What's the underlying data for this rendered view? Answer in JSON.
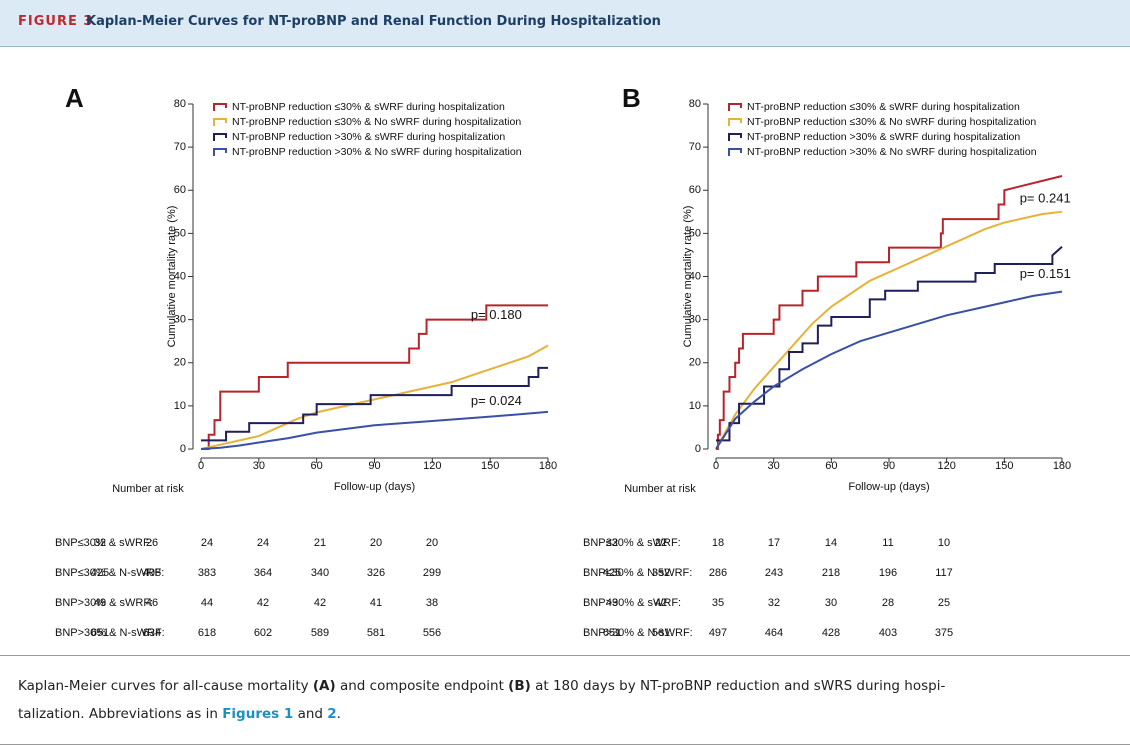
{
  "header": {
    "label": "FIGURE 3",
    "title": "Kaplan-Meier Curves for NT-proBNP and Renal Function During Hospitalization"
  },
  "chart_data": [
    {
      "type": "line",
      "step": true,
      "panel": "A",
      "x_label": "Follow-up (days)",
      "y_label": "Cumulative mortality rate (%)",
      "xlim": [
        0,
        180
      ],
      "xticks": [
        0,
        30,
        60,
        90,
        120,
        150,
        180
      ],
      "ylim": [
        0,
        80
      ],
      "yticks": [
        0,
        10,
        20,
        30,
        40,
        50,
        60,
        70,
        80
      ],
      "legend": "top-left",
      "series": [
        {
          "name": "NT-proBNP reduction ≤30% & sWRF during hospitalization",
          "color": "#b8242b",
          "x": [
            0,
            4,
            4,
            7,
            7,
            10,
            10,
            30,
            30,
            45,
            45,
            108,
            108,
            113,
            113,
            117,
            117,
            148,
            148,
            180
          ],
          "values": [
            0,
            0,
            3.3,
            3.3,
            6.7,
            6.7,
            13.3,
            13.3,
            16.7,
            16.7,
            20,
            20,
            23.3,
            23.3,
            26.7,
            26.7,
            30,
            30,
            33.3,
            33.3
          ]
        },
        {
          "name": "NT-proBNP reduction ≤30% & No sWRF during hospitalization",
          "color": "#e5b23a",
          "x": [
            0,
            10,
            20,
            30,
            40,
            50,
            60,
            70,
            80,
            90,
            100,
            110,
            120,
            130,
            140,
            150,
            160,
            170,
            180
          ],
          "values": [
            0,
            1,
            2,
            3,
            5,
            7,
            8.5,
            9.5,
            10.5,
            11.5,
            12.5,
            13.5,
            14.5,
            15.5,
            17,
            18.5,
            20,
            21.5,
            24
          ]
        },
        {
          "name": "NT-proBNP reduction >30% & sWRF during hospitalization",
          "color": "#1f1f5c",
          "x": [
            0,
            13,
            13,
            25,
            25,
            53,
            53,
            60,
            60,
            88,
            88,
            130,
            130,
            170,
            170,
            175,
            175,
            180
          ],
          "values": [
            2,
            2,
            4,
            4,
            6,
            6,
            8,
            8,
            10.4,
            10.4,
            12.5,
            12.5,
            14.6,
            14.6,
            16.7,
            16.7,
            18.8,
            18.8
          ]
        },
        {
          "name": "NT-proBNP reduction >30% & No sWRF during hospitalization",
          "color": "#3a4fa6",
          "x": [
            0,
            10,
            20,
            30,
            45,
            60,
            90,
            120,
            150,
            180
          ],
          "values": [
            0,
            0.3,
            0.8,
            1.5,
            2.5,
            3.8,
            5.5,
            6.5,
            7.5,
            8.6
          ]
        }
      ],
      "annotations": [
        {
          "text": "p= 0.180",
          "x": 140,
          "y": 31
        },
        {
          "text": "p= 0.024",
          "x": 140,
          "y": 11
        }
      ],
      "risk_table": {
        "title": "Number at risk",
        "rows": [
          {
            "label": "BNP≤30% & sWRF:",
            "values": [
              32,
              26,
              24,
              24,
              21,
              20,
              20
            ]
          },
          {
            "label": "BNP≤30% & N-sWRF:",
            "values": [
              425,
              408,
              383,
              364,
              340,
              326,
              299
            ]
          },
          {
            "label": "BNP>30% & sWRF:",
            "values": [
              49,
              46,
              44,
              42,
              42,
              41,
              38
            ]
          },
          {
            "label": "BNP>30% & N-sWRF:",
            "values": [
              651,
              634,
              618,
              602,
              589,
              581,
              556
            ]
          }
        ]
      }
    },
    {
      "type": "line",
      "step": true,
      "panel": "B",
      "x_label": "Follow-up (days)",
      "y_label": "Cumulative mortality rate (%)",
      "xlim": [
        0,
        180
      ],
      "xticks": [
        0,
        30,
        60,
        90,
        120,
        150,
        180
      ],
      "ylim": [
        0,
        80
      ],
      "yticks": [
        0,
        10,
        20,
        30,
        40,
        50,
        60,
        70,
        80
      ],
      "legend": "top-left",
      "series": [
        {
          "name": "NT-proBNP reduction ≤30% & sWRF during hospitalization",
          "color": "#b8242b",
          "x": [
            0,
            1,
            1,
            2,
            2,
            4,
            4,
            7,
            7,
            10,
            10,
            12,
            12,
            14,
            14,
            30,
            30,
            33,
            33,
            45,
            45,
            53,
            53,
            73,
            73,
            90,
            90,
            117,
            117,
            118,
            118,
            147,
            147,
            150,
            150,
            180
          ],
          "values": [
            0,
            0,
            3.3,
            3.3,
            6.7,
            6.7,
            13.3,
            13.3,
            16.7,
            16.7,
            20,
            20,
            23.3,
            23.3,
            26.7,
            26.7,
            30,
            30,
            33.3,
            33.3,
            36.7,
            36.7,
            40,
            40,
            43.3,
            43.3,
            46.7,
            46.7,
            50,
            50,
            53.3,
            53.3,
            56.7,
            56.7,
            60,
            63.3
          ]
        },
        {
          "name": "NT-proBNP reduction ≤30% & No sWRF during hospitalization",
          "color": "#e5b23a",
          "x": [
            0,
            10,
            20,
            30,
            40,
            50,
            60,
            70,
            80,
            90,
            100,
            110,
            120,
            130,
            140,
            150,
            160,
            170,
            180
          ],
          "values": [
            0,
            8,
            14,
            19,
            24,
            29,
            33,
            36,
            39,
            41,
            43,
            45,
            47,
            49,
            51,
            52.5,
            53.5,
            54.5,
            55
          ]
        },
        {
          "name": "NT-proBNP reduction >30% & sWRF during hospitalization",
          "color": "#1f1f5c",
          "x": [
            0,
            7,
            7,
            12,
            12,
            25,
            25,
            33,
            33,
            38,
            38,
            45,
            45,
            53,
            53,
            60,
            60,
            80,
            80,
            88,
            88,
            105,
            105,
            135,
            135,
            145,
            145,
            175,
            175,
            180
          ],
          "values": [
            2,
            2,
            6,
            6,
            10.5,
            10.5,
            14.5,
            14.5,
            18.5,
            18.5,
            22.5,
            22.5,
            24.5,
            24.5,
            28.6,
            28.6,
            30.6,
            30.6,
            34.7,
            34.7,
            36.7,
            36.7,
            38.8,
            38.8,
            40.8,
            40.8,
            42.9,
            42.9,
            44.9,
            46.9
          ]
        },
        {
          "name": "NT-proBNP reduction >30% & No sWRF during hospitalization",
          "color": "#3a4fa6",
          "x": [
            0,
            10,
            20,
            30,
            45,
            60,
            75,
            90,
            105,
            120,
            135,
            150,
            165,
            180
          ],
          "values": [
            0,
            7,
            11,
            14.5,
            18.5,
            22,
            25,
            27,
            29,
            31,
            32.5,
            34,
            35.5,
            36.5
          ]
        }
      ],
      "annotations": [
        {
          "text": "p= 0.241",
          "x": 158,
          "y": 58
        },
        {
          "text": "p= 0.151",
          "x": 158,
          "y": 40.5
        }
      ],
      "risk_table": {
        "title": "Number at risk",
        "rows": [
          {
            "label": "BNP≤30% & sWRF:",
            "values": [
              32,
              22,
              18,
              17,
              14,
              11,
              10
            ]
          },
          {
            "label": "BNP≤30% & N-sWRF:",
            "values": [
              425,
              352,
              286,
              243,
              218,
              196,
              117
            ]
          },
          {
            "label": "BNP>30% & sWRF:",
            "values": [
              49,
              42,
              35,
              32,
              30,
              28,
              25
            ]
          },
          {
            "label": "BNP>30% & N-sWRF:",
            "values": [
              651,
              561,
              497,
              464,
              428,
              403,
              375
            ]
          }
        ]
      }
    }
  ],
  "caption": [
    "Kaplan-Meier curves for all-cause mortality ",
    "(A)",
    " and composite endpoint ",
    "(B)",
    " at 180 days by NT-proBNP reduction and sWRS during hospi-",
    "talization. Abbreviations as in ",
    "Figures 1",
    " and ",
    "2",
    "."
  ]
}
